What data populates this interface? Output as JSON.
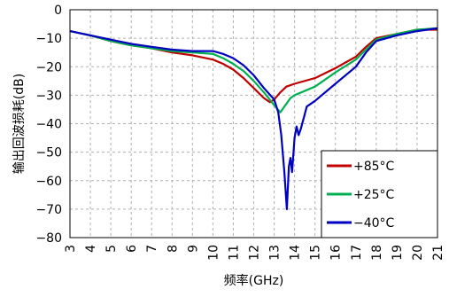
{
  "chart_data": {
    "type": "line",
    "title": "",
    "xlabel": "频率(GHz)",
    "ylabel": "输出回波损耗(dB)",
    "xlim": [
      3,
      21
    ],
    "ylim": [
      -80,
      0
    ],
    "x_ticks": [
      "3",
      "4",
      "5",
      "6",
      "7",
      "8",
      "9",
      "10",
      "11",
      "12",
      "13",
      "14",
      "15",
      "16",
      "17",
      "18",
      "19",
      "20",
      "21"
    ],
    "y_ticks": [
      "0",
      "−10",
      "−20",
      "−30",
      "−40",
      "−50",
      "−60",
      "−70",
      "−80"
    ],
    "grid": true,
    "legend_position": "bottom-right",
    "series": [
      {
        "name": "+85°C",
        "color": "#c00000",
        "points": [
          [
            3,
            -7.5
          ],
          [
            4,
            -9
          ],
          [
            5,
            -11
          ],
          [
            6,
            -12.5
          ],
          [
            7,
            -13.5
          ],
          [
            8,
            -15
          ],
          [
            9,
            -16
          ],
          [
            10,
            -17.5
          ],
          [
            10.5,
            -19
          ],
          [
            11,
            -21
          ],
          [
            11.5,
            -24
          ],
          [
            12,
            -27.5
          ],
          [
            12.5,
            -31
          ],
          [
            12.8,
            -32.5
          ],
          [
            13,
            -31.5
          ],
          [
            13.3,
            -29
          ],
          [
            13.6,
            -27
          ],
          [
            14,
            -26
          ],
          [
            15,
            -24
          ],
          [
            16,
            -20.5
          ],
          [
            17,
            -16.5
          ],
          [
            17.5,
            -13
          ],
          [
            18,
            -10
          ],
          [
            19,
            -8.5
          ],
          [
            20,
            -7
          ],
          [
            21,
            -7
          ]
        ]
      },
      {
        "name": "+25°C",
        "color": "#00b050",
        "points": [
          [
            3,
            -7.5
          ],
          [
            4,
            -9
          ],
          [
            5,
            -11
          ],
          [
            6,
            -12.5
          ],
          [
            7,
            -13.5
          ],
          [
            8,
            -14.5
          ],
          [
            9,
            -15
          ],
          [
            10,
            -15.5
          ],
          [
            10.5,
            -17
          ],
          [
            11,
            -19
          ],
          [
            11.5,
            -21.5
          ],
          [
            12,
            -25
          ],
          [
            12.5,
            -29
          ],
          [
            13,
            -33.5
          ],
          [
            13.3,
            -36
          ],
          [
            13.5,
            -34
          ],
          [
            13.8,
            -31
          ],
          [
            14,
            -30
          ],
          [
            15,
            -27
          ],
          [
            16,
            -22
          ],
          [
            17,
            -17.5
          ],
          [
            17.5,
            -14
          ],
          [
            18,
            -10.5
          ],
          [
            19,
            -8.5
          ],
          [
            20,
            -7
          ],
          [
            21,
            -6.5
          ]
        ]
      },
      {
        "name": "−40°C",
        "color": "#0000c0",
        "points": [
          [
            3,
            -7.5
          ],
          [
            4,
            -9
          ],
          [
            5,
            -10.5
          ],
          [
            6,
            -12
          ],
          [
            7,
            -13
          ],
          [
            8,
            -14
          ],
          [
            9,
            -14.5
          ],
          [
            10,
            -14.5
          ],
          [
            10.5,
            -15.5
          ],
          [
            11,
            -17
          ],
          [
            11.5,
            -19.5
          ],
          [
            12,
            -23
          ],
          [
            12.5,
            -27.5
          ],
          [
            13,
            -31.5
          ],
          [
            13.2,
            -36
          ],
          [
            13.35,
            -44
          ],
          [
            13.5,
            -57
          ],
          [
            13.62,
            -70
          ],
          [
            13.72,
            -55
          ],
          [
            13.8,
            -52
          ],
          [
            13.88,
            -57
          ],
          [
            14,
            -45
          ],
          [
            14.1,
            -41
          ],
          [
            14.2,
            -44
          ],
          [
            14.3,
            -42
          ],
          [
            14.45,
            -38
          ],
          [
            14.6,
            -34
          ],
          [
            15,
            -32
          ],
          [
            16,
            -26
          ],
          [
            17,
            -20
          ],
          [
            17.5,
            -15
          ],
          [
            18,
            -11
          ],
          [
            19,
            -9
          ],
          [
            20,
            -7.5
          ],
          [
            21,
            -6.5
          ]
        ]
      }
    ]
  }
}
